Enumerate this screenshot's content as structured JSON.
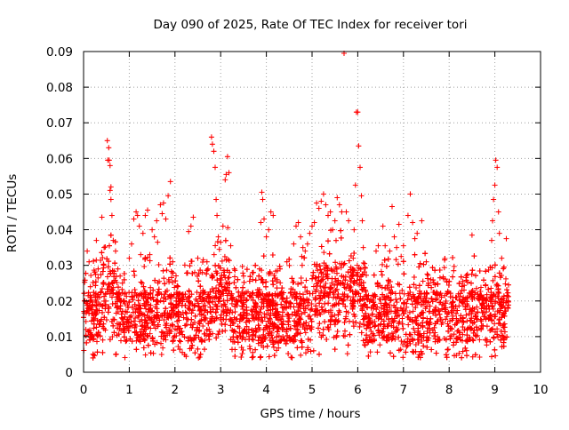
{
  "chart_data": {
    "type": "scatter",
    "title": "Day 090 of 2025, Rate Of TEC Index for receiver tori",
    "xlabel": "GPS time / hours",
    "ylabel": "ROTI / TECUs",
    "xlim": [
      0,
      10
    ],
    "ylim": [
      0,
      0.09
    ],
    "xticks": [
      "0",
      "1",
      "2",
      "3",
      "4",
      "5",
      "6",
      "7",
      "8",
      "9",
      "10"
    ],
    "yticks": [
      "0",
      "0.01",
      "0.02",
      "0.03",
      "0.04",
      "0.05",
      "0.06",
      "0.07",
      "0.08",
      "0.09"
    ],
    "grid": true,
    "marker": "+",
    "series_color": "#ff0000",
    "x_coverage_hours": [
      0.0,
      9.3
    ],
    "series": [
      {
        "name": "ROTI",
        "points": [
          [
            0.05,
            0.012
          ],
          [
            0.08,
            0.034
          ],
          [
            0.12,
            0.031
          ],
          [
            0.15,
            0.024
          ],
          [
            0.2,
            0.019
          ],
          [
            0.28,
            0.037
          ],
          [
            0.32,
            0.029
          ],
          [
            0.35,
            0.021
          ],
          [
            0.4,
            0.0435
          ],
          [
            0.45,
            0.035
          ],
          [
            0.52,
            0.065
          ],
          [
            0.53,
            0.0595
          ],
          [
            0.55,
            0.063
          ],
          [
            0.56,
            0.0595
          ],
          [
            0.58,
            0.058
          ],
          [
            0.58,
            0.051
          ],
          [
            0.6,
            0.052
          ],
          [
            0.6,
            0.0485
          ],
          [
            0.62,
            0.044
          ],
          [
            0.65,
            0.037
          ],
          [
            0.7,
            0.034
          ],
          [
            0.75,
            0.029
          ],
          [
            0.8,
            0.027
          ],
          [
            0.85,
            0.025
          ],
          [
            0.9,
            0.022
          ],
          [
            1.0,
            0.032
          ],
          [
            1.05,
            0.036
          ],
          [
            1.1,
            0.043
          ],
          [
            1.15,
            0.045
          ],
          [
            1.18,
            0.044
          ],
          [
            1.22,
            0.041
          ],
          [
            1.25,
            0.033
          ],
          [
            1.28,
            0.025
          ],
          [
            1.3,
            0.039
          ],
          [
            1.35,
            0.044
          ],
          [
            1.4,
            0.0455
          ],
          [
            1.45,
            0.033
          ],
          [
            1.5,
            0.04
          ],
          [
            1.55,
            0.038
          ],
          [
            1.6,
            0.0425
          ],
          [
            1.62,
            0.0365
          ],
          [
            1.68,
            0.047
          ],
          [
            1.72,
            0.0445
          ],
          [
            1.75,
            0.0475
          ],
          [
            1.8,
            0.043
          ],
          [
            1.85,
            0.0495
          ],
          [
            1.9,
            0.0535
          ],
          [
            1.95,
            0.031
          ],
          [
            2.05,
            0.024
          ],
          [
            2.3,
            0.0395
          ],
          [
            2.35,
            0.041
          ],
          [
            2.4,
            0.0435
          ],
          [
            2.5,
            0.032
          ],
          [
            2.6,
            0.028
          ],
          [
            2.7,
            0.031
          ],
          [
            2.8,
            0.066
          ],
          [
            2.82,
            0.064
          ],
          [
            2.85,
            0.062
          ],
          [
            2.88,
            0.0575
          ],
          [
            2.9,
            0.0485
          ],
          [
            2.92,
            0.044
          ],
          [
            2.95,
            0.038
          ],
          [
            2.97,
            0.0345
          ],
          [
            3.0,
            0.0365
          ],
          [
            3.05,
            0.041
          ],
          [
            3.1,
            0.054
          ],
          [
            3.12,
            0.0555
          ],
          [
            3.15,
            0.0605
          ],
          [
            3.18,
            0.056
          ],
          [
            3.22,
            0.0355
          ],
          [
            3.3,
            0.029
          ],
          [
            3.5,
            0.027
          ],
          [
            3.7,
            0.026
          ],
          [
            3.85,
            0.029
          ],
          [
            3.88,
            0.042
          ],
          [
            3.9,
            0.0505
          ],
          [
            3.92,
            0.0485
          ],
          [
            3.95,
            0.043
          ],
          [
            4.0,
            0.038
          ],
          [
            4.05,
            0.04
          ],
          [
            4.1,
            0.045
          ],
          [
            4.15,
            0.044
          ],
          [
            4.3,
            0.029
          ],
          [
            4.45,
            0.031
          ],
          [
            4.6,
            0.036
          ],
          [
            4.65,
            0.041
          ],
          [
            4.7,
            0.042
          ],
          [
            4.75,
            0.038
          ],
          [
            4.8,
            0.035
          ],
          [
            4.85,
            0.034
          ],
          [
            4.9,
            0.036
          ],
          [
            4.95,
            0.039
          ],
          [
            5.0,
            0.041
          ],
          [
            5.05,
            0.042
          ],
          [
            5.1,
            0.0475
          ],
          [
            5.15,
            0.046
          ],
          [
            5.2,
            0.048
          ],
          [
            5.25,
            0.05
          ],
          [
            5.3,
            0.047
          ],
          [
            5.35,
            0.044
          ],
          [
            5.4,
            0.045
          ],
          [
            5.45,
            0.04
          ],
          [
            5.5,
            0.0425
          ],
          [
            5.55,
            0.049
          ],
          [
            5.6,
            0.047
          ],
          [
            5.65,
            0.045
          ],
          [
            5.7,
            0.0895
          ],
          [
            5.75,
            0.045
          ],
          [
            5.8,
            0.0425
          ],
          [
            5.85,
            0.0295
          ],
          [
            5.9,
            0.032
          ],
          [
            5.92,
            0.04
          ],
          [
            5.95,
            0.0525
          ],
          [
            5.97,
            0.073
          ],
          [
            6.0,
            0.073
          ],
          [
            6.02,
            0.0635
          ],
          [
            6.05,
            0.0575
          ],
          [
            6.08,
            0.0495
          ],
          [
            6.1,
            0.0425
          ],
          [
            6.12,
            0.035
          ],
          [
            6.15,
            0.0305
          ],
          [
            6.4,
            0.034
          ],
          [
            6.45,
            0.0355
          ],
          [
            6.55,
            0.041
          ],
          [
            6.6,
            0.0355
          ],
          [
            6.7,
            0.034
          ],
          [
            6.75,
            0.0465
          ],
          [
            6.8,
            0.038
          ],
          [
            6.85,
            0.035
          ],
          [
            6.9,
            0.0415
          ],
          [
            6.95,
            0.0325
          ],
          [
            7.0,
            0.0355
          ],
          [
            7.1,
            0.044
          ],
          [
            7.15,
            0.05
          ],
          [
            7.2,
            0.042
          ],
          [
            7.25,
            0.0375
          ],
          [
            7.3,
            0.039
          ],
          [
            7.4,
            0.0425
          ],
          [
            7.5,
            0.031
          ],
          [
            7.6,
            0.026
          ],
          [
            7.7,
            0.022
          ],
          [
            7.8,
            0.0265
          ],
          [
            7.9,
            0.0315
          ],
          [
            8.0,
            0.0255
          ],
          [
            8.1,
            0.0285
          ],
          [
            8.2,
            0.022
          ],
          [
            8.3,
            0.0255
          ],
          [
            8.4,
            0.0275
          ],
          [
            8.5,
            0.0385
          ],
          [
            8.6,
            0.0235
          ],
          [
            8.7,
            0.021
          ],
          [
            8.8,
            0.0245
          ],
          [
            8.9,
            0.0295
          ],
          [
            8.93,
            0.037
          ],
          [
            8.95,
            0.0425
          ],
          [
            8.97,
            0.0485
          ],
          [
            9.0,
            0.0525
          ],
          [
            9.02,
            0.0595
          ],
          [
            9.05,
            0.0575
          ],
          [
            9.08,
            0.045
          ],
          [
            9.1,
            0.039
          ],
          [
            9.15,
            0.032
          ],
          [
            9.2,
            0.0295
          ],
          [
            9.25,
            0.0375
          ],
          [
            9.3,
            0.0245
          ]
        ]
      }
    ]
  }
}
